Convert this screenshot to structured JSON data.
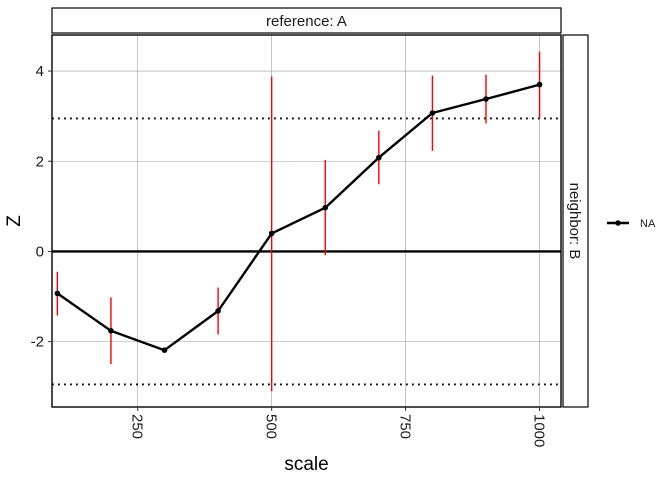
{
  "chart_data": {
    "type": "line",
    "facet_top_label": "reference: A",
    "facet_right_label": "neighbor: B",
    "xlabel": "scale",
    "ylabel": "Z",
    "xlim": [
      90,
      1040
    ],
    "ylim": [
      -3.45,
      4.8
    ],
    "x_ticks": [
      250,
      500,
      750,
      1000
    ],
    "x_tick_labels": [
      "250",
      "500",
      "750",
      "1000"
    ],
    "y_ticks": [
      -2,
      0,
      2,
      4
    ],
    "y_tick_labels": [
      "-2",
      "0",
      "2",
      "4"
    ],
    "grid": true,
    "hlines": [
      {
        "y": 0,
        "style": "solid"
      },
      {
        "y": 2.95,
        "style": "dotted"
      },
      {
        "y": -2.95,
        "style": "dotted"
      }
    ],
    "series": [
      {
        "name": "NA",
        "color": "#000000",
        "error_bar_color": "#ff0000",
        "points": [
          {
            "x": 100,
            "y": -0.93,
            "lo": -1.42,
            "hi": -0.45
          },
          {
            "x": 200,
            "y": -1.76,
            "lo": -2.5,
            "hi": -1.02
          },
          {
            "x": 300,
            "y": -2.19,
            "lo": -2.22,
            "hi": -2.16
          },
          {
            "x": 400,
            "y": -1.32,
            "lo": -1.84,
            "hi": -0.8
          },
          {
            "x": 500,
            "y": 0.4,
            "lo": -3.1,
            "hi": 3.88
          },
          {
            "x": 600,
            "y": 0.97,
            "lo": -0.08,
            "hi": 2.03
          },
          {
            "x": 700,
            "y": 2.08,
            "lo": 1.49,
            "hi": 2.68
          },
          {
            "x": 800,
            "y": 3.07,
            "lo": 2.23,
            "hi": 3.9
          },
          {
            "x": 900,
            "y": 3.38,
            "lo": 2.84,
            "hi": 3.92
          },
          {
            "x": 1000,
            "y": 3.7,
            "lo": 2.96,
            "hi": 4.43
          }
        ]
      }
    ],
    "legend": {
      "position": "right",
      "entries": [
        "NA"
      ]
    }
  }
}
